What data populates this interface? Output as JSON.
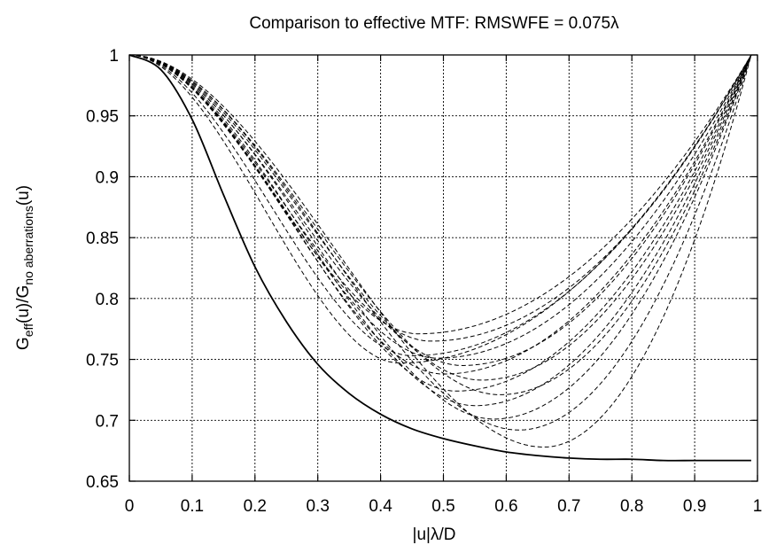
{
  "chart_data": {
    "type": "line",
    "title": "Comparison to effective MTF: RMSWFE = 0.075λ",
    "xlabel": "|u|λ/D",
    "ylabel": {
      "main": "G",
      "sub1": "eff",
      "mid": "(u)/G",
      "sub2": "no aberrations",
      "end": "(u)"
    },
    "xlim": [
      0,
      1
    ],
    "ylim": [
      0.65,
      1
    ],
    "xticks": [
      "0",
      "0.1",
      "0.2",
      "0.3",
      "0.4",
      "0.5",
      "0.6",
      "0.7",
      "0.8",
      "0.9",
      "1"
    ],
    "yticks": [
      "0.65",
      "0.7",
      "0.75",
      "0.8",
      "0.85",
      "0.9",
      "0.95",
      "1"
    ],
    "grid": true,
    "series": [
      {
        "style": "solid",
        "x": [
          0,
          0.05,
          0.1,
          0.15,
          0.2,
          0.25,
          0.3,
          0.35,
          0.4,
          0.45,
          0.5,
          0.55,
          0.6,
          0.65,
          0.7,
          0.75,
          0.8,
          0.85,
          0.9,
          0.95,
          0.99
        ],
        "y": [
          1.0,
          0.988,
          0.947,
          0.885,
          0.826,
          0.781,
          0.746,
          0.722,
          0.705,
          0.693,
          0.685,
          0.679,
          0.674,
          0.671,
          0.669,
          0.668,
          0.668,
          0.667,
          0.667,
          0.667,
          0.667
        ]
      },
      {
        "style": "dashed",
        "dip_x": 0.43,
        "dip_y": 0.747
      },
      {
        "style": "dashed",
        "dip_x": 0.45,
        "dip_y": 0.753
      },
      {
        "style": "dashed",
        "dip_x": 0.46,
        "dip_y": 0.771
      },
      {
        "style": "dashed",
        "dip_x": 0.48,
        "dip_y": 0.765
      },
      {
        "style": "dashed",
        "dip_x": 0.49,
        "dip_y": 0.751
      },
      {
        "style": "dashed",
        "dip_x": 0.5,
        "dip_y": 0.738
      },
      {
        "style": "dashed",
        "dip_x": 0.52,
        "dip_y": 0.724
      },
      {
        "style": "dashed",
        "dip_x": 0.53,
        "dip_y": 0.745
      },
      {
        "style": "dashed",
        "dip_x": 0.55,
        "dip_y": 0.712
      },
      {
        "style": "dashed",
        "dip_x": 0.56,
        "dip_y": 0.733
      },
      {
        "style": "dashed",
        "dip_x": 0.58,
        "dip_y": 0.701
      },
      {
        "style": "dashed",
        "dip_x": 0.59,
        "dip_y": 0.721
      },
      {
        "style": "dashed",
        "dip_x": 0.62,
        "dip_y": 0.692
      },
      {
        "style": "dashed",
        "dip_x": 0.66,
        "dip_y": 0.678
      }
    ]
  }
}
